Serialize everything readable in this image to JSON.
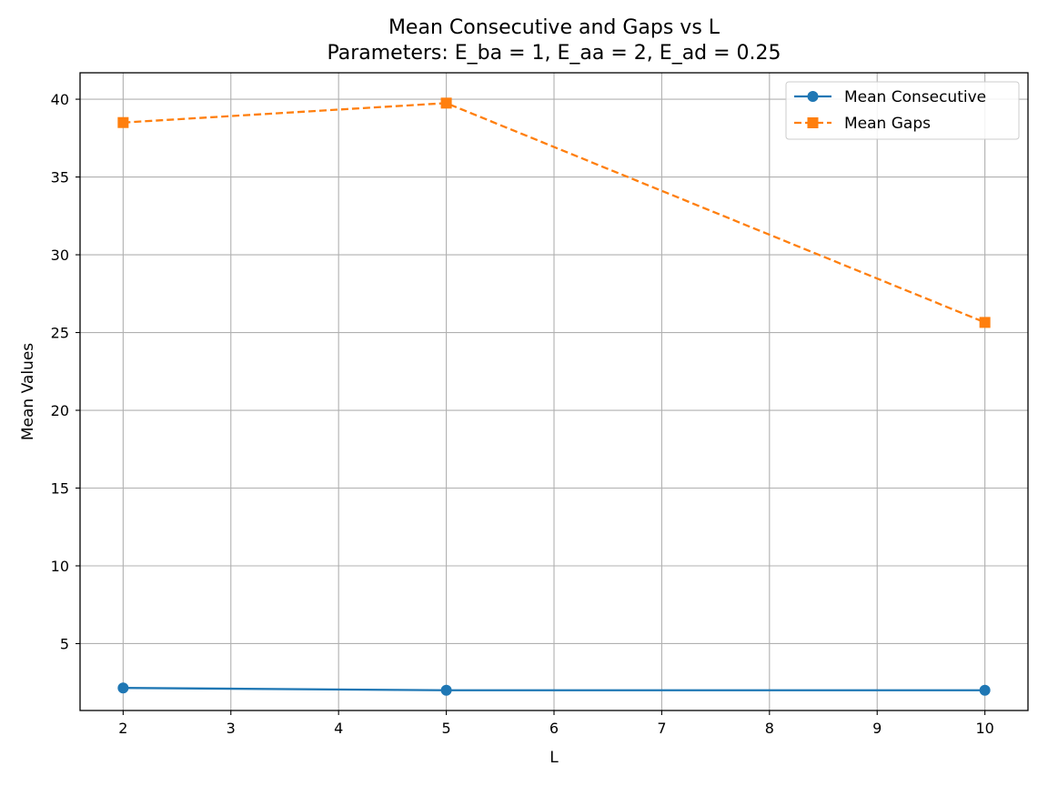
{
  "chart_data": {
    "type": "line",
    "title": "Mean Consecutive and Gaps vs L",
    "subtitle": "Parameters: E_ba = 1, E_aa = 2, E_ad = 0.25",
    "xlabel": "L",
    "ylabel": "Mean Values",
    "x": [
      2,
      5,
      10
    ],
    "xlim": [
      1.6,
      10.4
    ],
    "ylim": [
      0.7,
      41.7
    ],
    "xticks": [
      "2",
      "3",
      "4",
      "5",
      "6",
      "7",
      "8",
      "9",
      "10"
    ],
    "yticks": [
      "5",
      "10",
      "15",
      "20",
      "25",
      "30",
      "35",
      "40"
    ],
    "grid": true,
    "legend_position": "top-right",
    "series": [
      {
        "name": "Mean Consecutive",
        "values": [
          2.15,
          2.0,
          2.0
        ],
        "color": "#1f77b4",
        "marker": "circle",
        "linestyle": "solid"
      },
      {
        "name": "Mean Gaps",
        "values": [
          38.5,
          39.75,
          25.65
        ],
        "color": "#ff7f0e",
        "marker": "square",
        "linestyle": "dashed"
      }
    ]
  }
}
